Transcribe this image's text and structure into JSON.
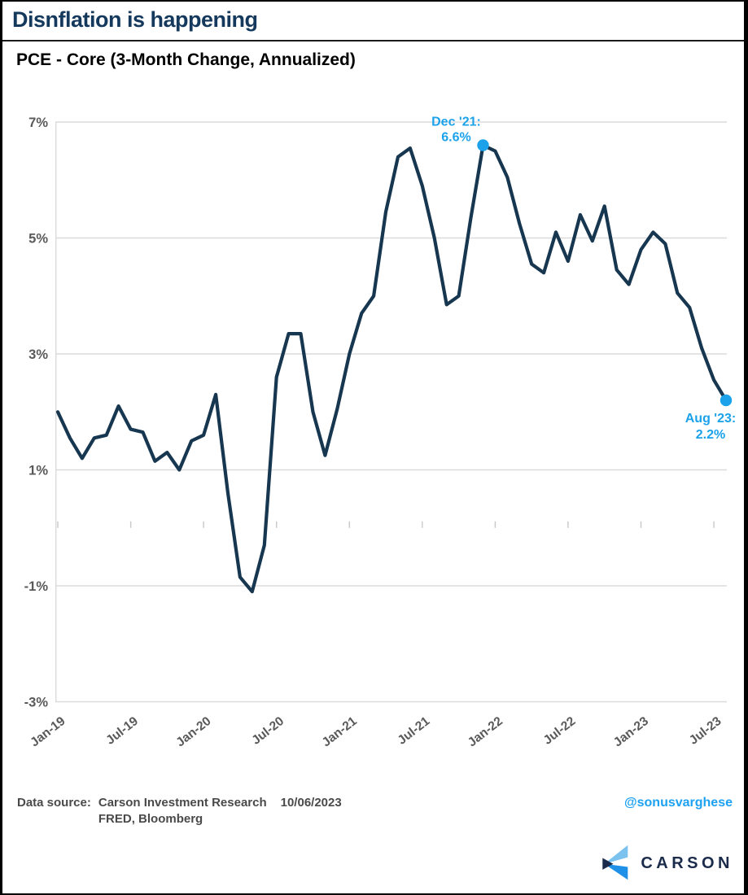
{
  "page": {
    "title": "Disnflation is happening",
    "subtitle": "PCE - Core (3-Month Change, Annualized)"
  },
  "chart_data": {
    "type": "line",
    "title": "PCE - Core (3-Month Change, Annualized)",
    "series_name": "Core PCE 3-month annualized change",
    "x": [
      "Jan-19",
      "Feb-19",
      "Mar-19",
      "Apr-19",
      "May-19",
      "Jun-19",
      "Jul-19",
      "Aug-19",
      "Sep-19",
      "Oct-19",
      "Nov-19",
      "Dec-19",
      "Jan-20",
      "Feb-20",
      "Mar-20",
      "Apr-20",
      "May-20",
      "Jun-20",
      "Jul-20",
      "Aug-20",
      "Sep-20",
      "Oct-20",
      "Nov-20",
      "Dec-20",
      "Jan-21",
      "Feb-21",
      "Mar-21",
      "Apr-21",
      "May-21",
      "Jun-21",
      "Jul-21",
      "Aug-21",
      "Sep-21",
      "Oct-21",
      "Nov-21",
      "Dec-21",
      "Jan-22",
      "Feb-22",
      "Mar-22",
      "Apr-22",
      "May-22",
      "Jun-22",
      "Jul-22",
      "Aug-22",
      "Sep-22",
      "Oct-22",
      "Nov-22",
      "Dec-22",
      "Jan-23",
      "Feb-23",
      "Mar-23",
      "Apr-23",
      "May-23",
      "Jun-23",
      "Jul-23",
      "Aug-23"
    ],
    "values": [
      2.0,
      1.55,
      1.2,
      1.55,
      1.6,
      2.1,
      1.7,
      1.65,
      1.15,
      1.3,
      1.0,
      1.5,
      1.6,
      2.3,
      0.6,
      -0.85,
      -1.1,
      -0.3,
      2.6,
      3.35,
      3.35,
      2.0,
      1.25,
      2.05,
      3.0,
      3.7,
      4.0,
      5.45,
      6.4,
      6.55,
      5.9,
      5.0,
      3.85,
      4.0,
      5.35,
      6.6,
      6.5,
      6.05,
      5.25,
      4.55,
      4.4,
      5.1,
      4.6,
      5.4,
      4.95,
      5.55,
      4.45,
      4.2,
      4.8,
      5.1,
      4.9,
      4.05,
      3.8,
      3.1,
      2.55,
      2.2
    ],
    "ylim": [
      -3,
      7
    ],
    "grid": "horizontal",
    "legend": "none",
    "yticks": [
      {
        "value": 7,
        "label": "7%"
      },
      {
        "value": 5,
        "label": "5%"
      },
      {
        "value": 3,
        "label": "3%"
      },
      {
        "value": 1,
        "label": "1%"
      },
      {
        "value": -1,
        "label": "-1%"
      },
      {
        "value": -3,
        "label": "-3%"
      }
    ],
    "xticks": [
      {
        "index": 0,
        "label": "Jan-19"
      },
      {
        "index": 6,
        "label": "Jul-19"
      },
      {
        "index": 12,
        "label": "Jan-20"
      },
      {
        "index": 18,
        "label": "Jul-20"
      },
      {
        "index": 24,
        "label": "Jan-21"
      },
      {
        "index": 30,
        "label": "Jul-21"
      },
      {
        "index": 36,
        "label": "Jan-22"
      },
      {
        "index": 42,
        "label": "Jul-22"
      },
      {
        "index": 48,
        "label": "Jan-23"
      },
      {
        "index": 54,
        "label": "Jul-23"
      }
    ],
    "annotations": [
      {
        "month": "Dec-21",
        "value": 6.6,
        "text_line1": "Dec '21:",
        "text_line2": "6.6%",
        "position": "above-left"
      },
      {
        "month": "Aug-23",
        "value": 2.2,
        "text_line1": "Aug '23:",
        "text_line2": "2.2%",
        "position": "below-left"
      }
    ],
    "line_color": "#17364F",
    "marker_color": "#1BA2EA",
    "grid_color": "#DBDBDB",
    "tick_label_color": "#595959"
  },
  "footer": {
    "data_source_label": "Data source:",
    "source_line1": "Carson Investment Research",
    "source_line2": "FRED, Bloomberg",
    "date": "10/06/2023",
    "handle": "@sonusvarghese"
  },
  "logo": {
    "text": "CARSON",
    "navy": "#1B2B4A",
    "light_blue": "#7CC2EE",
    "bright_blue": "#1E90E8"
  }
}
